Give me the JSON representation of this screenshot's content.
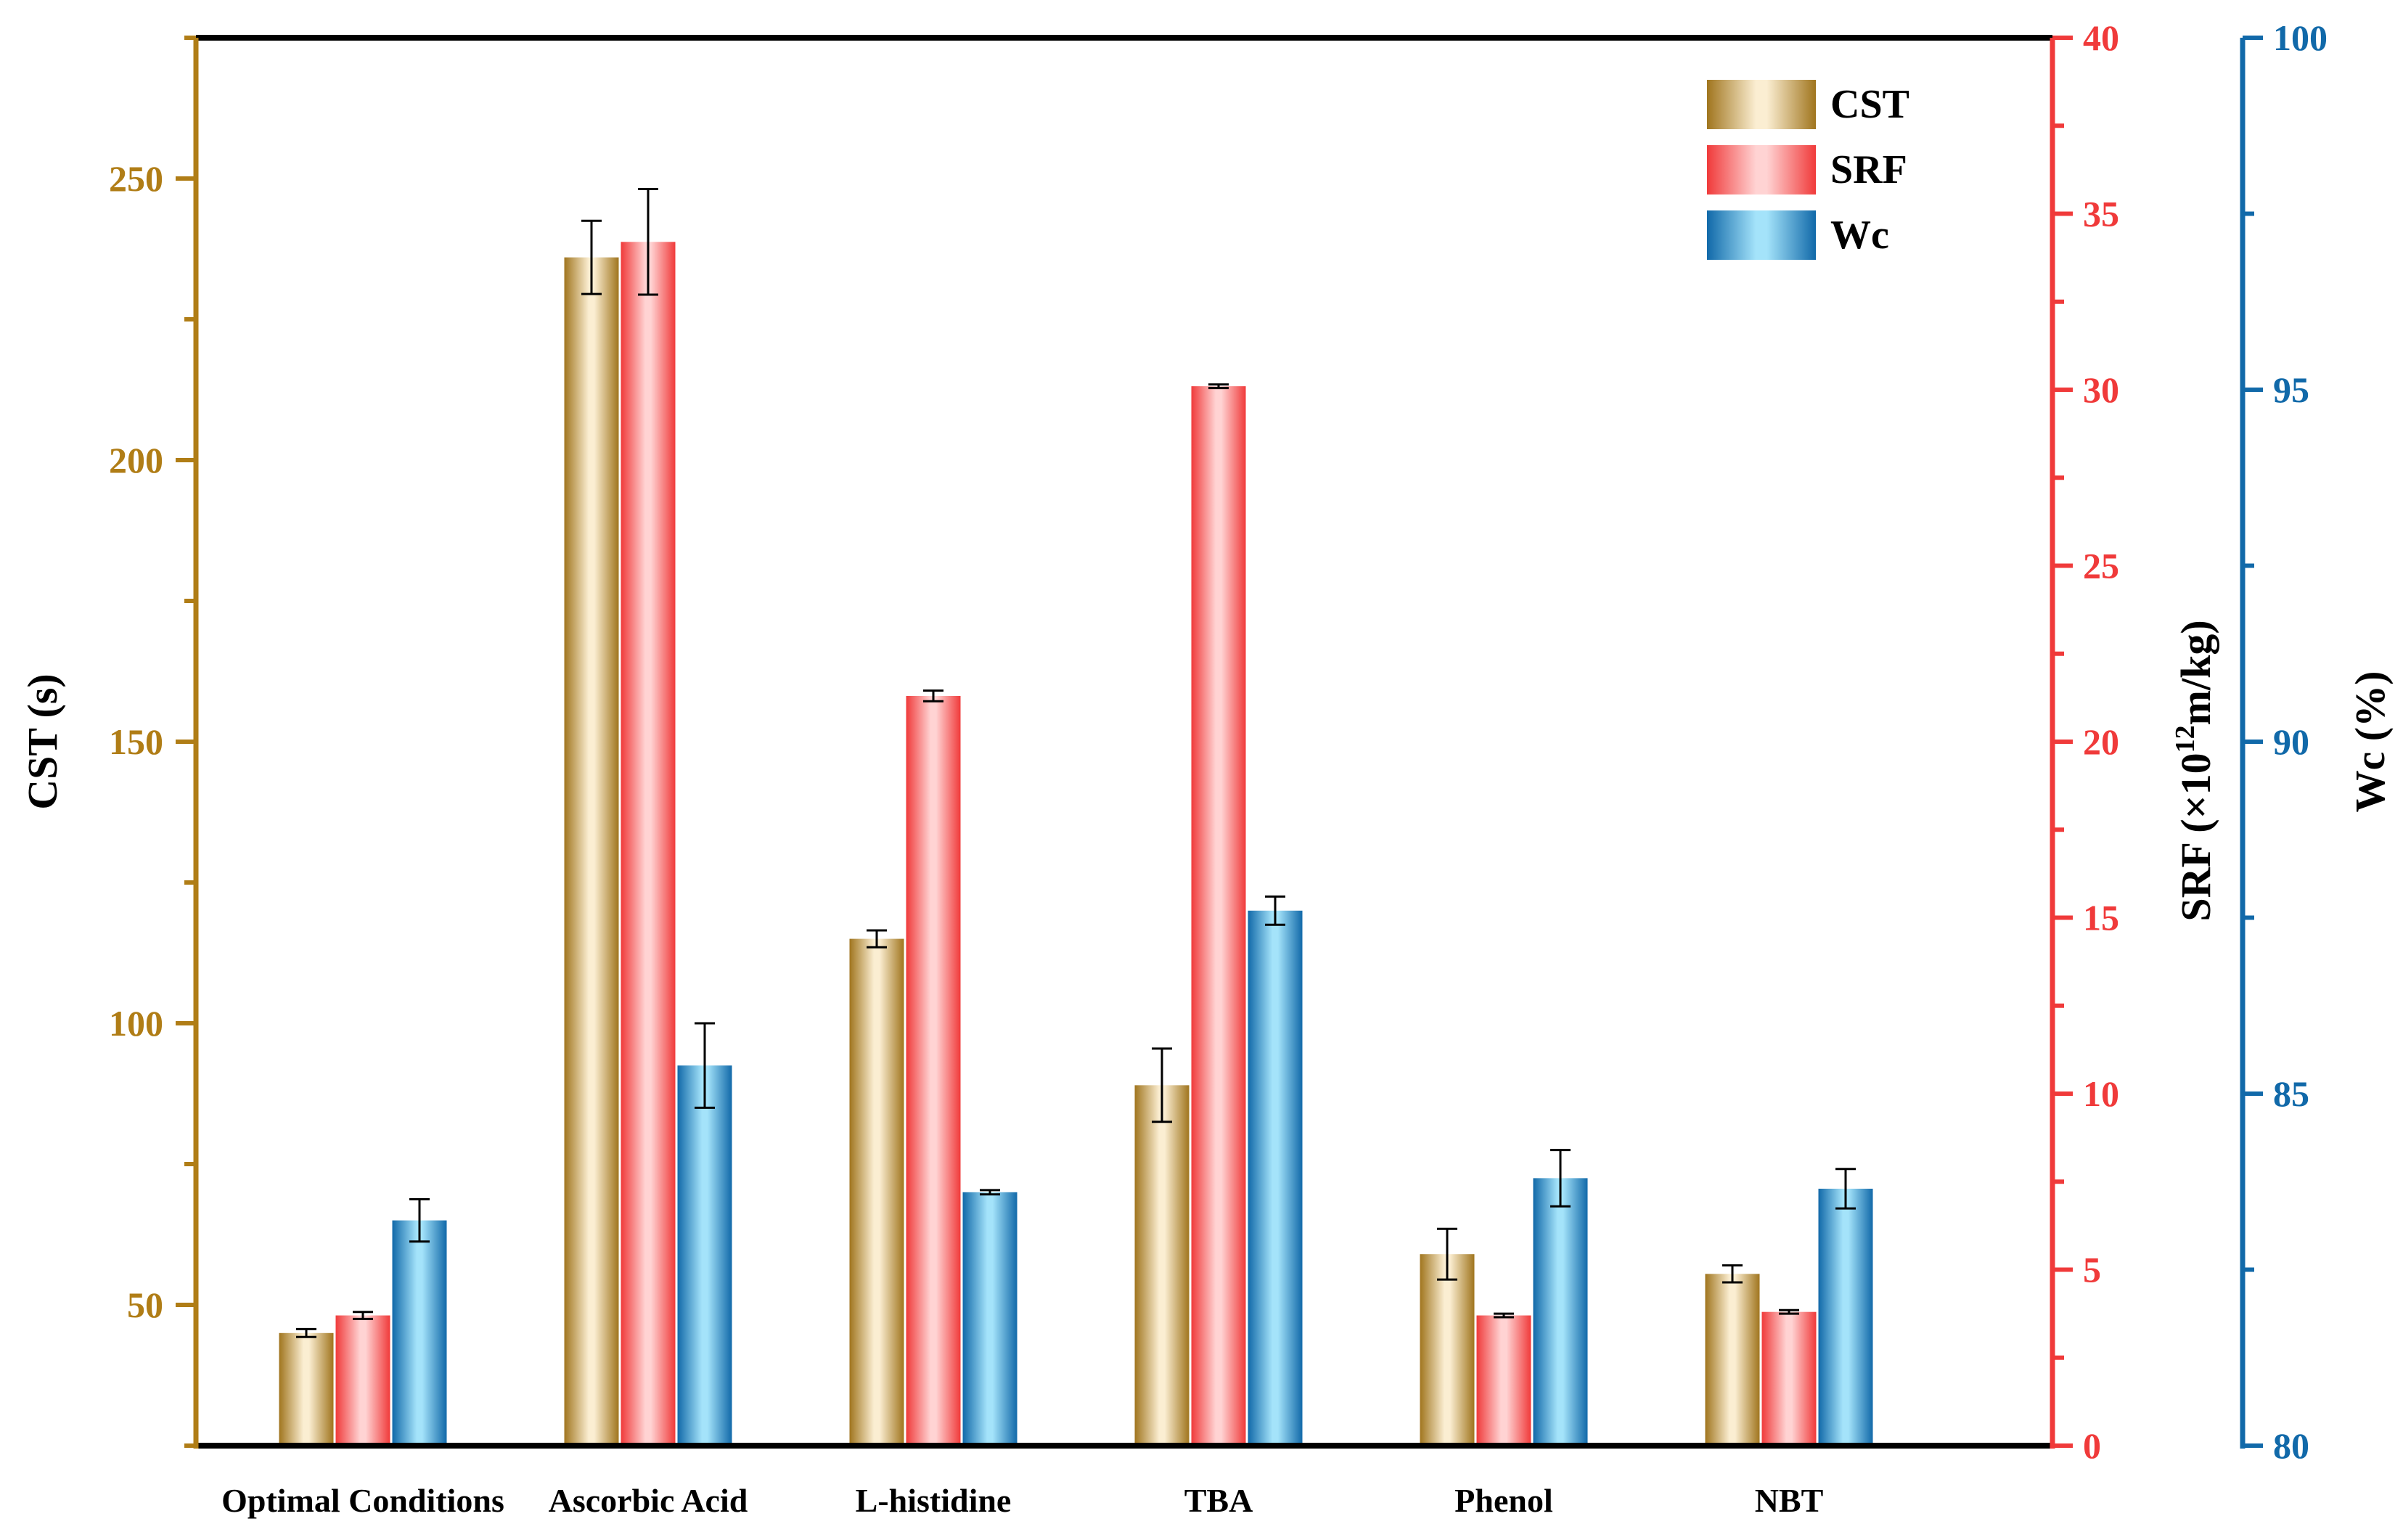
{
  "chart_data": {
    "type": "bar",
    "categories": [
      "Optimal Conditions",
      "Ascorbic Acid",
      "L-histidine",
      "TBA",
      "Phenol",
      "NBT"
    ],
    "series": [
      {
        "name": "CST",
        "axis": "left",
        "values": [
          45,
          236,
          115,
          89,
          59,
          55.5
        ],
        "errors": [
          0.7,
          6.5,
          1.5,
          6.5,
          4.5,
          1.5
        ],
        "colors": {
          "dark": "#A0751E",
          "light": "#FBEED2"
        }
      },
      {
        "name": "SRF",
        "axis": "right1",
        "values": [
          3.7,
          34.2,
          21.3,
          30.1,
          3.7,
          3.8
        ],
        "errors": [
          0.1,
          1.5,
          0.15,
          0.05,
          0.05,
          0.05
        ],
        "colors": {
          "dark": "#F03A3A",
          "light": "#FFD3D3"
        }
      },
      {
        "name": "Wc",
        "axis": "right2",
        "values": [
          83.2,
          85.4,
          83.6,
          87.6,
          83.8,
          83.65
        ],
        "errors": [
          0.3,
          0.6,
          0.03,
          0.2,
          0.4,
          0.28
        ],
        "colors": {
          "dark": "#1169A9",
          "light": "#A4E3FA"
        }
      }
    ],
    "axes": {
      "left": {
        "label": "CST (s)",
        "min": 25,
        "max": 275,
        "ticks": [
          50,
          100,
          150,
          200,
          250
        ],
        "color": "#B07D16"
      },
      "right1": {
        "label_prefix": "SRF (×10",
        "label_sup": "12",
        "label_suffix": "m/kg)",
        "min": 0,
        "max": 40,
        "ticks": [
          0,
          5,
          10,
          15,
          20,
          25,
          30,
          35,
          40
        ],
        "color": "#F03A3A"
      },
      "right2": {
        "label": "Wc (%)",
        "min": 80,
        "max": 100,
        "ticks": [
          80,
          85,
          90,
          95,
          100
        ],
        "color": "#1169A9"
      }
    },
    "legend": {
      "position": "top-right",
      "entries": [
        "CST",
        "SRF",
        "Wc"
      ]
    }
  }
}
